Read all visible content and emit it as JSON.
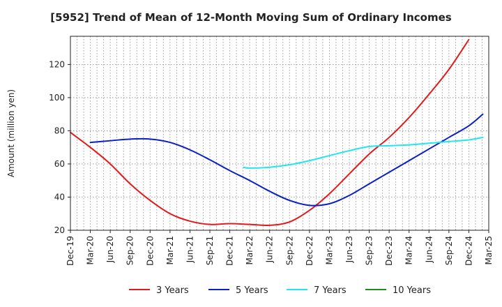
{
  "chart_data": {
    "type": "line",
    "title": "[5952]  Trend of Mean of 12-Month Moving Sum of Ordinary Incomes",
    "xlabel": "",
    "ylabel": "Amount (million yen)",
    "ylim": [
      20,
      137
    ],
    "yticks": [
      20,
      40,
      60,
      80,
      100,
      120
    ],
    "categories": [
      "Dec-19",
      "Mar-20",
      "Jun-20",
      "Sep-20",
      "Dec-20",
      "Mar-21",
      "Jun-21",
      "Sep-21",
      "Dec-21",
      "Mar-22",
      "Jun-22",
      "Sep-22",
      "Dec-22",
      "Mar-23",
      "Jun-23",
      "Sep-23",
      "Dec-23",
      "Mar-24",
      "Jun-24",
      "Sep-24",
      "Dec-24",
      "Mar-25"
    ],
    "grid": true,
    "legend_position": "bottom",
    "series": [
      {
        "name": "3 Years",
        "color": "#e31a1c",
        "points": [
          [
            0,
            79
          ],
          [
            1,
            70
          ],
          [
            2,
            60
          ],
          [
            3,
            48
          ],
          [
            4,
            38
          ],
          [
            5,
            30
          ],
          [
            6,
            25.5
          ],
          [
            7,
            23.5
          ],
          [
            8,
            24
          ],
          [
            9,
            23.5
          ],
          [
            10,
            23
          ],
          [
            11,
            25
          ],
          [
            12,
            32
          ],
          [
            13,
            42
          ],
          [
            14,
            54
          ],
          [
            15,
            66
          ],
          [
            16,
            76
          ],
          [
            17,
            88
          ],
          [
            18,
            102
          ],
          [
            19,
            117
          ],
          [
            20,
            135
          ]
        ]
      },
      {
        "name": "5 Years",
        "color": "#0a1fc8",
        "points": [
          [
            1,
            73
          ],
          [
            2,
            74
          ],
          [
            3,
            75
          ],
          [
            4,
            75
          ],
          [
            5,
            73
          ],
          [
            6,
            68.5
          ],
          [
            7,
            62.5
          ],
          [
            8,
            56
          ],
          [
            9,
            50
          ],
          [
            10,
            43.5
          ],
          [
            11,
            38
          ],
          [
            12,
            35
          ],
          [
            13,
            36
          ],
          [
            14,
            41
          ],
          [
            15,
            48
          ],
          [
            16,
            55
          ],
          [
            17,
            62
          ],
          [
            18,
            69
          ],
          [
            19,
            76
          ],
          [
            20,
            83
          ],
          [
            20.7,
            90
          ]
        ]
      },
      {
        "name": "7 Years",
        "color": "#22e6ef",
        "points": [
          [
            8.7,
            58
          ],
          [
            9,
            57.5
          ],
          [
            10,
            58
          ],
          [
            11,
            59.5
          ],
          [
            12,
            62
          ],
          [
            13,
            65
          ],
          [
            14,
            68
          ],
          [
            15,
            70.5
          ],
          [
            16,
            71
          ],
          [
            17,
            71.5
          ],
          [
            18,
            72.5
          ],
          [
            19,
            73.5
          ],
          [
            20,
            74.5
          ],
          [
            20.7,
            76
          ]
        ]
      },
      {
        "name": "10 Years",
        "color": "#1e8c1e",
        "points": []
      }
    ]
  }
}
